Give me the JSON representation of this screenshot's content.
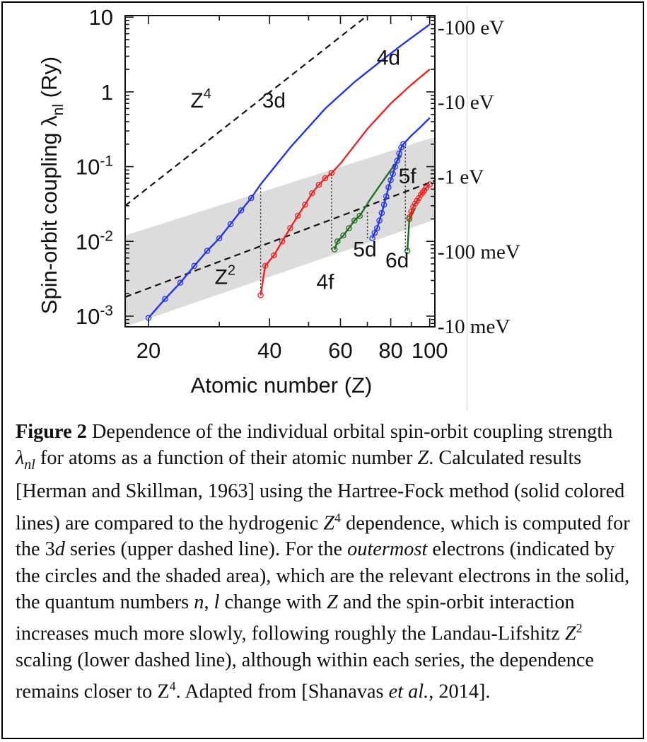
{
  "chart_data": {
    "type": "line",
    "x_scale": "log",
    "y_scale": "log",
    "xlim": [
      17.5,
      103
    ],
    "ylim": [
      0.00072,
      10.5
    ],
    "xlabel": "Atomic number (Z)",
    "ylabel": "Spin-orbit coupling λnl (Ry)",
    "x_ticks": [
      {
        "value": 20,
        "label": "20"
      },
      {
        "value": 40,
        "label": "40"
      },
      {
        "value": 60,
        "label": "60"
      },
      {
        "value": 80,
        "label": "80"
      },
      {
        "value": 100,
        "label": "100"
      }
    ],
    "y_ticks": [
      {
        "value": 0.001,
        "base": "10",
        "exp": "-3"
      },
      {
        "value": 0.01,
        "base": "10",
        "exp": "-2"
      },
      {
        "value": 0.1,
        "base": "10",
        "exp": "-1"
      },
      {
        "value": 1,
        "base": "1",
        "exp": ""
      },
      {
        "value": 10,
        "base": "10",
        "exp": ""
      }
    ],
    "right_ticks": [
      {
        "value": 7.35,
        "label": "-100 eV"
      },
      {
        "value": 0.735,
        "label": "-10 eV"
      },
      {
        "value": 0.0735,
        "label": "-1 eV"
      },
      {
        "value": 0.00735,
        "label": "-100 meV"
      },
      {
        "value": 0.000735,
        "label": "-10 meV"
      }
    ],
    "series": [
      {
        "name": "3d",
        "color": "#2233ee",
        "x": [
          20,
          22,
          24,
          26,
          28,
          30,
          32,
          34,
          36,
          38,
          45,
          55,
          65,
          75,
          85,
          100
        ],
        "y": [
          0.00095,
          0.0017,
          0.0028,
          0.0047,
          0.0075,
          0.011,
          0.017,
          0.026,
          0.038,
          0.058,
          0.18,
          0.6,
          1.35,
          2.5,
          4.2,
          8
        ]
      },
      {
        "name": "4d",
        "color": "#ee2222",
        "x": [
          38,
          39,
          41,
          43,
          45,
          47,
          49,
          51,
          53,
          55,
          57,
          60,
          70,
          80,
          90,
          100
        ],
        "y": [
          0.0019,
          0.0047,
          0.0065,
          0.01,
          0.015,
          0.022,
          0.031,
          0.044,
          0.057,
          0.07,
          0.082,
          0.11,
          0.32,
          0.7,
          1.25,
          2
        ]
      },
      {
        "name": "4f",
        "color": "#1e6e1e",
        "x": [
          58,
          59,
          61,
          63,
          65,
          67,
          69,
          71,
          75,
          80,
          85
        ],
        "y": [
          0.0078,
          0.01,
          0.012,
          0.015,
          0.019,
          0.022,
          0.028,
          0.036,
          0.055,
          0.09,
          0.14
        ]
      },
      {
        "name": "5d",
        "color": "#2233ee",
        "x": [
          72,
          73,
          74,
          75,
          76,
          77,
          78,
          79,
          80,
          81,
          82,
          83,
          84,
          85,
          86,
          90,
          95,
          100
        ],
        "y": [
          0.011,
          0.013,
          0.015,
          0.019,
          0.024,
          0.031,
          0.04,
          0.053,
          0.066,
          0.08,
          0.1,
          0.12,
          0.15,
          0.18,
          0.2,
          0.26,
          0.34,
          0.45
        ]
      },
      {
        "name": "6d",
        "color": "#1e6e1e",
        "x": [
          88,
          89,
          90,
          92
        ],
        "y": [
          0.0075,
          0.02,
          0.022,
          0.028
        ]
      },
      {
        "name": "5f",
        "color": "#ee2222",
        "x": [
          89,
          90,
          91,
          92,
          93,
          94,
          95,
          96,
          97,
          98,
          100
        ],
        "y": [
          0.021,
          0.025,
          0.029,
          0.032,
          0.035,
          0.038,
          0.042,
          0.045,
          0.048,
          0.052,
          0.058
        ]
      }
    ],
    "marker_runs": [
      {
        "color": "#2233ee",
        "x": [
          20,
          22,
          24,
          26,
          28,
          30,
          32,
          34,
          36
        ]
      },
      {
        "color": "#ee2222",
        "x": [
          38,
          39,
          41,
          43,
          45,
          47,
          49,
          51,
          53,
          55,
          57
        ]
      },
      {
        "color": "#1e6e1e",
        "x": [
          58,
          59,
          61,
          63,
          65,
          67
        ]
      },
      {
        "color": "#2233ee",
        "x": [
          72,
          73,
          74,
          75,
          76,
          77,
          78,
          79,
          80,
          81,
          82,
          83,
          84,
          85,
          86
        ]
      },
      {
        "color": "#1e6e1e",
        "x": [
          88,
          89
        ]
      },
      {
        "color": "#ee2222",
        "x": [
          89,
          90,
          91,
          92,
          93,
          94,
          95,
          96,
          97,
          98,
          100
        ]
      }
    ],
    "reference_lines": [
      {
        "name": "Z4",
        "x": [
          17.5,
          70
        ],
        "y": [
          0.03,
          10.5
        ]
      },
      {
        "name": "Z2",
        "x": [
          17.5,
          103
        ],
        "y": [
          0.0018,
          0.065
        ]
      }
    ],
    "shaded_band": {
      "x": [
        17.5,
        103
      ],
      "y_lower": [
        0.00072,
        0.0195
      ],
      "y_upper": [
        0.012,
        0.25
      ]
    },
    "dotted_verticals": [
      {
        "x": 38,
        "y": [
          0.0019,
          0.058
        ]
      },
      {
        "x": 57,
        "y": [
          0.0078,
          0.082
        ]
      },
      {
        "x": 70,
        "y": [
          0.011,
          0.025
        ]
      },
      {
        "x": 87,
        "y": [
          0.0075,
          0.2
        ]
      }
    ],
    "annotations": [
      {
        "key": "z4",
        "base": "Z",
        "sup": "4",
        "x": 27,
        "y": 0.62
      },
      {
        "key": "3d",
        "text": "3d",
        "x": 41,
        "y": 0.62
      },
      {
        "key": "4d",
        "text": "4d",
        "x": 79,
        "y": 2.3
      },
      {
        "key": "5f",
        "text": "5f",
        "x": 88,
        "y": 0.06
      },
      {
        "key": "z2",
        "base": "Z",
        "sup": "2",
        "x": 31,
        "y": 0.0027
      },
      {
        "key": "4f",
        "text": "4f",
        "x": 55,
        "y": 0.0023
      },
      {
        "key": "5d",
        "text": "5d",
        "x": 69,
        "y": 0.0063
      },
      {
        "key": "6d",
        "text": "6d",
        "x": 83,
        "y": 0.0045
      }
    ]
  },
  "caption": {
    "label": "Figure 2",
    "seg1": " Dependence of the individual orbital spin-orbit coupling strength ",
    "lambda": "λ",
    "lambda_sub": "nl",
    "seg2": " for atoms as a function of their atomic number ",
    "z1": "Z",
    "seg3": ". Calculated results [Herman and Skillman, 1963] using the Hartree-Fock method (solid colored lines) are compared to the hydrogenic ",
    "z2": "Z",
    "sup1": "4",
    "seg4": " dependence, which is computed for the 3",
    "d1": "d",
    "seg5": " series (upper dashed line).  For the ",
    "outermost": "outermost",
    "seg6": " electrons (indicated by the circles and the shaded area), which are the relevant electrons in the solid, the quantum numbers ",
    "n": "n",
    "seg7": ", ",
    "l": "l",
    "seg8": " change with ",
    "z3": "Z",
    "seg9": " and the spin-orbit interaction increases much more slowly, following roughly the Landau-Lifshitz ",
    "z4": "Z",
    "sup2": "2",
    "seg10": " scaling (lower dashed line), although within each series, the dependence remains closer to Z",
    "sup3": "4",
    "seg11": ".  Adapted from [Shanavas ",
    "etal": "et al.",
    "seg12": ", 2014]."
  }
}
